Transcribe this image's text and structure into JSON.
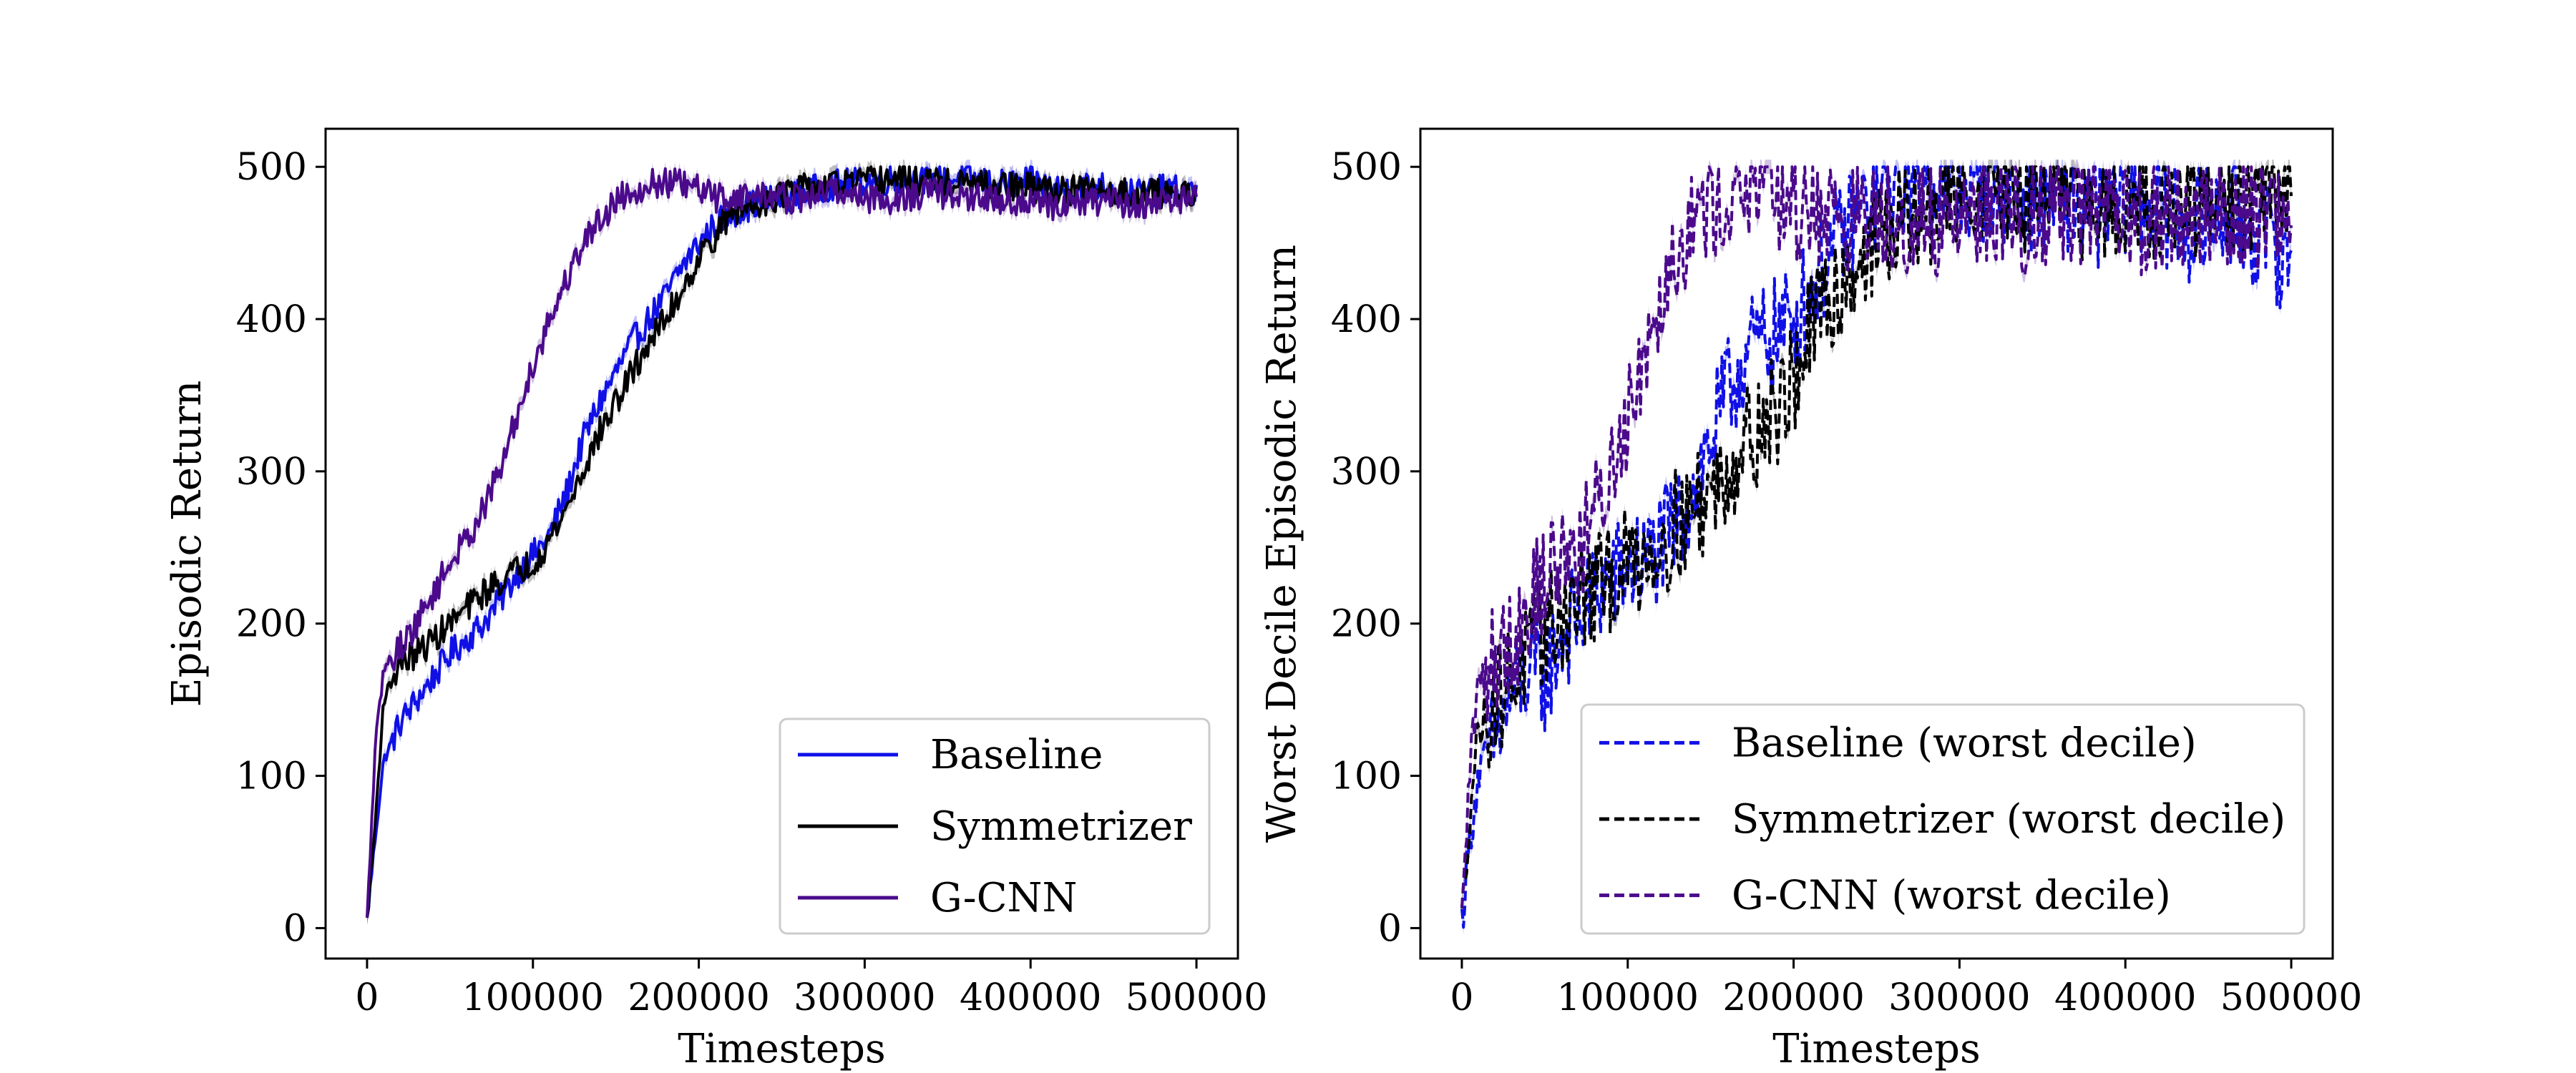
{
  "chart_data": [
    {
      "type": "line",
      "xlabel": "Timesteps",
      "ylabel": "Episodic Return",
      "xlim": [
        -25000,
        525000
      ],
      "ylim": [
        -20,
        525
      ],
      "xticks": [
        0,
        100000,
        200000,
        300000,
        400000,
        500000
      ],
      "xtick_labels": [
        "0",
        "100000",
        "200000",
        "300000",
        "400000",
        "500000"
      ],
      "yticks": [
        0,
        100,
        200,
        300,
        400,
        500
      ],
      "ytick_labels": [
        "0",
        "100",
        "200",
        "300",
        "400",
        "500"
      ],
      "grid": false,
      "legend_position": "bottom-right",
      "line_style": "solid",
      "shaded_band": true,
      "series": [
        {
          "name": "Baseline",
          "color": "#1010e6",
          "x": [
            0,
            5000,
            10000,
            20000,
            30000,
            40000,
            50000,
            60000,
            70000,
            80000,
            90000,
            100000,
            110000,
            120000,
            130000,
            140000,
            150000,
            160000,
            170000,
            180000,
            190000,
            200000,
            210000,
            220000,
            240000,
            260000,
            280000,
            300000,
            320000,
            340000,
            360000,
            380000,
            400000,
            420000,
            440000,
            460000,
            480000,
            500000
          ],
          "y": [
            5,
            60,
            110,
            135,
            150,
            165,
            180,
            190,
            200,
            215,
            232,
            245,
            258,
            285,
            320,
            345,
            365,
            385,
            400,
            415,
            435,
            450,
            462,
            470,
            478,
            482,
            488,
            490,
            492,
            490,
            493,
            488,
            490,
            485,
            488,
            482,
            485,
            483
          ]
        },
        {
          "name": "Symmetrizer",
          "color": "#000000",
          "x": [
            0,
            5000,
            10000,
            20000,
            30000,
            40000,
            50000,
            60000,
            70000,
            80000,
            90000,
            100000,
            110000,
            120000,
            130000,
            140000,
            150000,
            160000,
            170000,
            180000,
            190000,
            200000,
            210000,
            220000,
            240000,
            260000,
            280000,
            300000,
            320000,
            340000,
            360000,
            380000,
            400000,
            420000,
            440000,
            460000,
            480000,
            500000
          ],
          "y": [
            5,
            70,
            150,
            175,
            180,
            190,
            200,
            210,
            220,
            228,
            235,
            240,
            255,
            275,
            300,
            325,
            345,
            365,
            385,
            400,
            420,
            440,
            455,
            470,
            478,
            485,
            488,
            490,
            492,
            490,
            488,
            487,
            486,
            485,
            484,
            483,
            482,
            484
          ]
        },
        {
          "name": "G-CNN",
          "color": "#4b0a8c",
          "x": [
            0,
            5000,
            10000,
            20000,
            30000,
            40000,
            50000,
            60000,
            70000,
            80000,
            90000,
            100000,
            110000,
            120000,
            130000,
            140000,
            150000,
            160000,
            170000,
            180000,
            190000,
            200000,
            210000,
            220000,
            240000,
            260000,
            280000,
            300000,
            320000,
            340000,
            360000,
            380000,
            400000,
            420000,
            440000,
            460000,
            480000,
            500000
          ],
          "y": [
            5,
            120,
            170,
            185,
            200,
            220,
            240,
            255,
            275,
            300,
            335,
            370,
            400,
            425,
            450,
            465,
            478,
            485,
            488,
            490,
            488,
            485,
            480,
            480,
            482,
            478,
            485,
            480,
            478,
            484,
            480,
            478,
            476,
            474,
            478,
            475,
            477,
            480
          ]
        }
      ]
    },
    {
      "type": "line",
      "xlabel": "Timesteps",
      "ylabel": "Worst Decile Episodic Return",
      "xlim": [
        -25000,
        525000
      ],
      "ylim": [
        -20,
        525
      ],
      "xticks": [
        0,
        100000,
        200000,
        300000,
        400000,
        500000
      ],
      "xtick_labels": [
        "0",
        "100000",
        "200000",
        "300000",
        "400000",
        "500000"
      ],
      "yticks": [
        0,
        100,
        200,
        300,
        400,
        500
      ],
      "ytick_labels": [
        "0",
        "100",
        "200",
        "300",
        "400",
        "500"
      ],
      "grid": false,
      "legend_position": "bottom-right",
      "line_style": "dashed",
      "shaded_band": true,
      "series": [
        {
          "name": "Baseline (worst decile)",
          "color": "#1010e6",
          "x": [
            0,
            5000,
            10000,
            20000,
            30000,
            40000,
            50000,
            60000,
            70000,
            80000,
            90000,
            100000,
            110000,
            120000,
            130000,
            140000,
            150000,
            160000,
            170000,
            180000,
            190000,
            200000,
            210000,
            220000,
            240000,
            260000,
            280000,
            300000,
            320000,
            340000,
            360000,
            380000,
            400000,
            420000,
            440000,
            460000,
            480000,
            500000
          ],
          "y": [
            5,
            60,
            100,
            125,
            150,
            170,
            165,
            190,
            205,
            220,
            230,
            235,
            240,
            250,
            265,
            290,
            320,
            350,
            375,
            385,
            390,
            400,
            420,
            440,
            470,
            490,
            495,
            485,
            490,
            480,
            485,
            470,
            480,
            475,
            460,
            470,
            455,
            440
          ]
        },
        {
          "name": "Symmetrizer (worst decile)",
          "color": "#000000",
          "x": [
            0,
            5000,
            10000,
            20000,
            30000,
            40000,
            50000,
            60000,
            70000,
            80000,
            90000,
            100000,
            110000,
            120000,
            130000,
            140000,
            150000,
            160000,
            170000,
            180000,
            190000,
            200000,
            210000,
            220000,
            240000,
            260000,
            280000,
            300000,
            320000,
            340000,
            360000,
            380000,
            400000,
            420000,
            440000,
            460000,
            480000,
            500000
          ],
          "y": [
            5,
            80,
            130,
            150,
            165,
            180,
            195,
            205,
            215,
            222,
            228,
            240,
            245,
            255,
            265,
            275,
            285,
            300,
            320,
            330,
            340,
            360,
            390,
            410,
            440,
            460,
            470,
            485,
            490,
            480,
            485,
            470,
            482,
            475,
            470,
            478,
            480,
            485
          ]
        },
        {
          "name": "G-CNN (worst decile)",
          "color": "#4b0a8c",
          "x": [
            0,
            5000,
            10000,
            20000,
            30000,
            40000,
            50000,
            60000,
            70000,
            80000,
            90000,
            100000,
            110000,
            120000,
            130000,
            140000,
            150000,
            160000,
            170000,
            180000,
            190000,
            200000,
            210000,
            220000,
            240000,
            260000,
            280000,
            300000,
            320000,
            340000,
            360000,
            380000,
            400000,
            420000,
            440000,
            460000,
            480000,
            500000
          ],
          "y": [
            5,
            110,
            160,
            180,
            190,
            210,
            230,
            245,
            250,
            270,
            300,
            340,
            380,
            420,
            450,
            465,
            475,
            480,
            485,
            490,
            480,
            470,
            478,
            470,
            465,
            470,
            460,
            470,
            475,
            465,
            478,
            470,
            460,
            470,
            465,
            472,
            468,
            475
          ]
        }
      ]
    }
  ]
}
